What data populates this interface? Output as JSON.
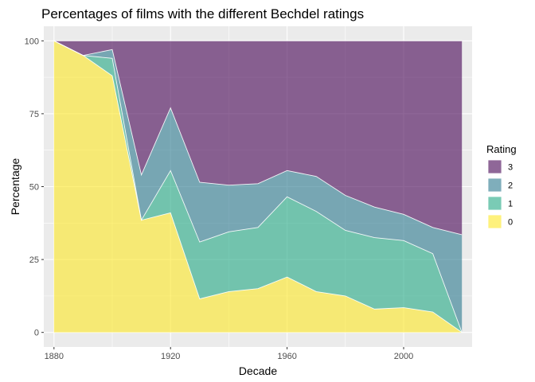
{
  "chart_data": {
    "type": "area",
    "title": "Percentages of films with the different Bechdel ratings",
    "xlabel": "Decade",
    "ylabel": "Percentage",
    "x": [
      1880,
      1890,
      1900,
      1910,
      1920,
      1930,
      1940,
      1950,
      1960,
      1970,
      1980,
      1990,
      2000,
      2010,
      2020
    ],
    "x_ticks": [
      1880,
      1920,
      1960,
      2000
    ],
    "y_ticks": [
      0,
      25,
      50,
      75,
      100
    ],
    "xlim": [
      1876.5,
      2023.5
    ],
    "ylim": [
      -5,
      105
    ],
    "grid": true,
    "stacked": true,
    "legend": {
      "title": "Rating",
      "position": "right",
      "order": [
        "3",
        "2",
        "1",
        "0"
      ]
    },
    "series": [
      {
        "name": "0",
        "color": "#FDE725",
        "values": [
          100,
          95,
          88,
          38.5,
          41,
          11.5,
          14,
          15,
          19,
          14,
          12.5,
          8,
          8.5,
          7,
          0
        ]
      },
      {
        "name": "1",
        "color": "#22A884",
        "values": [
          0,
          0,
          6,
          0,
          14.5,
          19.5,
          20.5,
          21,
          27.5,
          27.5,
          22.5,
          24.5,
          23,
          20,
          0
        ]
      },
      {
        "name": "2",
        "color": "#2A788E",
        "values": [
          0,
          0,
          3,
          15.5,
          21.5,
          20.5,
          16,
          15,
          9,
          12,
          12,
          10.5,
          9,
          9,
          33.5
        ]
      },
      {
        "name": "3",
        "color": "#440154",
        "values": [
          0,
          5,
          3,
          46,
          23,
          48.5,
          49.5,
          49,
          44.5,
          46.5,
          53,
          57,
          59.5,
          64,
          66.5
        ]
      }
    ]
  }
}
